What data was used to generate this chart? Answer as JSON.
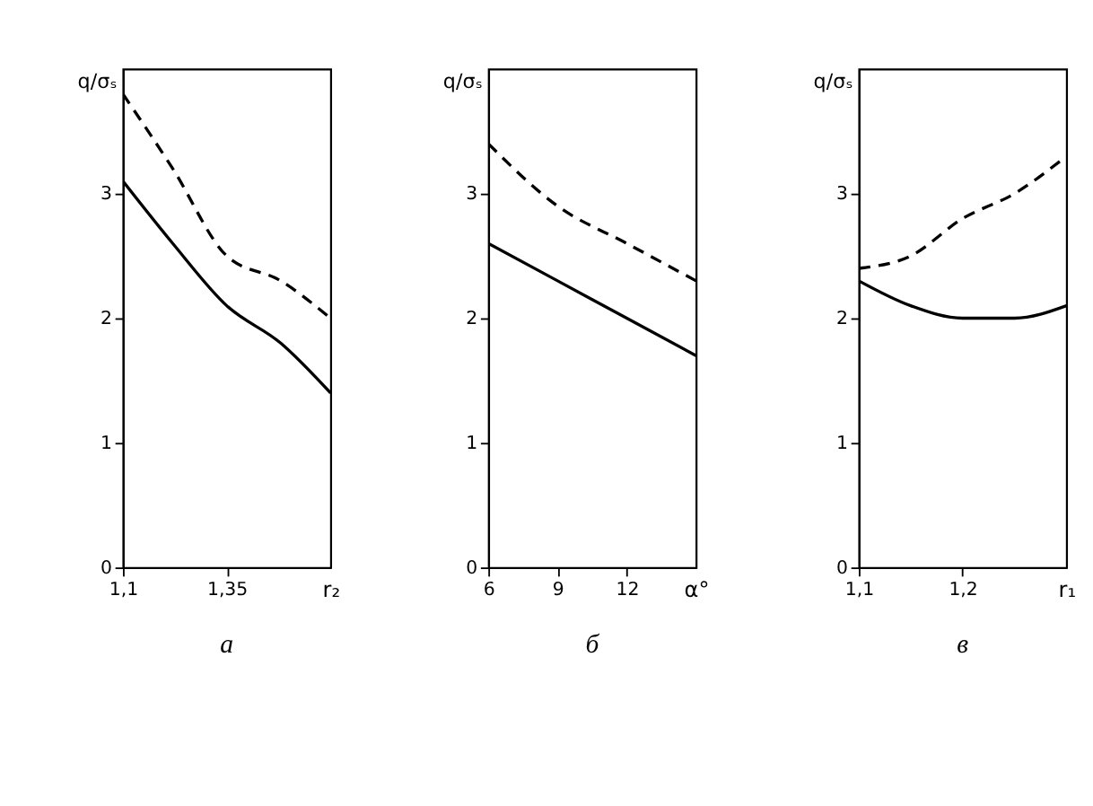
{
  "chart_data": [
    {
      "type": "line",
      "title": "а",
      "xlabel": "r₂",
      "ylabel": "q/σₛ",
      "xlim": [
        1.1,
        1.6
      ],
      "xticks": [
        {
          "value": 1.1,
          "label": "1,1"
        },
        {
          "value": 1.35,
          "label": "1,35"
        }
      ],
      "ylim": [
        0,
        4
      ],
      "yticks": [
        0,
        1,
        2,
        3
      ],
      "grid": false,
      "legend": false,
      "series": [
        {
          "color": "#000000",
          "line_style": "dashed",
          "x": [
            1.1,
            1.22,
            1.35,
            1.48,
            1.6
          ],
          "values": [
            3.8,
            3.2,
            2.5,
            2.3,
            2.0
          ]
        },
        {
          "color": "#000000",
          "line_style": "solid",
          "x": [
            1.1,
            1.22,
            1.35,
            1.48,
            1.6
          ],
          "values": [
            3.1,
            2.6,
            2.1,
            1.8,
            1.4
          ]
        }
      ]
    },
    {
      "type": "line",
      "title": "б",
      "xlabel": "α°",
      "ylabel": "q/σₛ",
      "xlim": [
        6,
        15
      ],
      "xticks": [
        6,
        9,
        12
      ],
      "ylim": [
        0,
        4
      ],
      "yticks": [
        0,
        1,
        2,
        3
      ],
      "grid": false,
      "legend": false,
      "series": [
        {
          "color": "#000000",
          "line_style": "dashed",
          "x": [
            6,
            9,
            12,
            15
          ],
          "values": [
            3.4,
            2.9,
            2.6,
            2.3
          ]
        },
        {
          "color": "#000000",
          "line_style": "solid",
          "x": [
            6,
            9,
            12,
            15
          ],
          "values": [
            2.6,
            2.3,
            2.0,
            1.7
          ]
        }
      ]
    },
    {
      "type": "line",
      "title": "в",
      "xlabel": "r₁",
      "ylabel": "q/σₛ",
      "xlim": [
        1.1,
        1.3
      ],
      "xticks": [
        {
          "value": 1.1,
          "label": "1,1"
        },
        {
          "value": 1.2,
          "label": "1,2"
        }
      ],
      "ylim": [
        0,
        4
      ],
      "yticks": [
        0,
        1,
        2,
        3
      ],
      "grid": false,
      "legend": false,
      "series": [
        {
          "color": "#000000",
          "line_style": "dashed",
          "x": [
            1.1,
            1.15,
            1.2,
            1.25,
            1.3
          ],
          "values": [
            2.4,
            2.5,
            2.8,
            3.0,
            3.3
          ]
        },
        {
          "color": "#000000",
          "line_style": "solid",
          "x": [
            1.1,
            1.15,
            1.2,
            1.25,
            1.3
          ],
          "values": [
            2.3,
            2.1,
            2.0,
            2.0,
            2.1
          ]
        }
      ]
    }
  ]
}
